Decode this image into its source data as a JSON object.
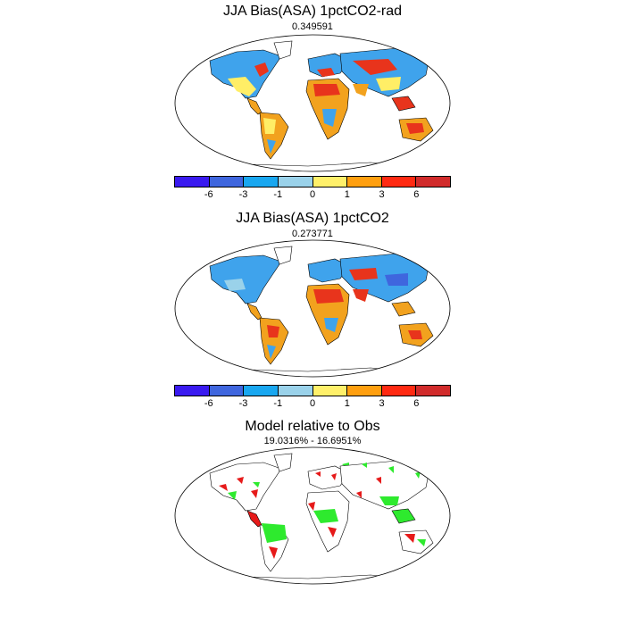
{
  "panels": [
    {
      "title": "JJA Bias(ASA) 1pctCO2-rad",
      "subtitle": "0.349591",
      "has_colorbar": true
    },
    {
      "title": "JJA Bias(ASA) 1pctCO2",
      "subtitle": "0.273771",
      "has_colorbar": true
    },
    {
      "title": "Model relative to Obs",
      "subtitle": "19.0316% - 16.6951%",
      "has_colorbar": false
    }
  ],
  "colorbar": {
    "colors": [
      "#3a1af0",
      "#3f66de",
      "#19a7f0",
      "#9ad2ea",
      "#fff06a",
      "#ff9f0f",
      "#ff2a12",
      "#d12b2b"
    ],
    "tick_labels": [
      "-6",
      "-3",
      "-1",
      "0",
      "1",
      "3",
      "6"
    ]
  },
  "palette": {
    "land_cool": "#3fa3ec",
    "land_warm": "#f2a21e",
    "land_hot": "#e8341c",
    "land_light": "#ffee66",
    "ocean": "#ffffff",
    "agree_green": "#2eea2e",
    "disagree_red": "#e61a1a"
  }
}
